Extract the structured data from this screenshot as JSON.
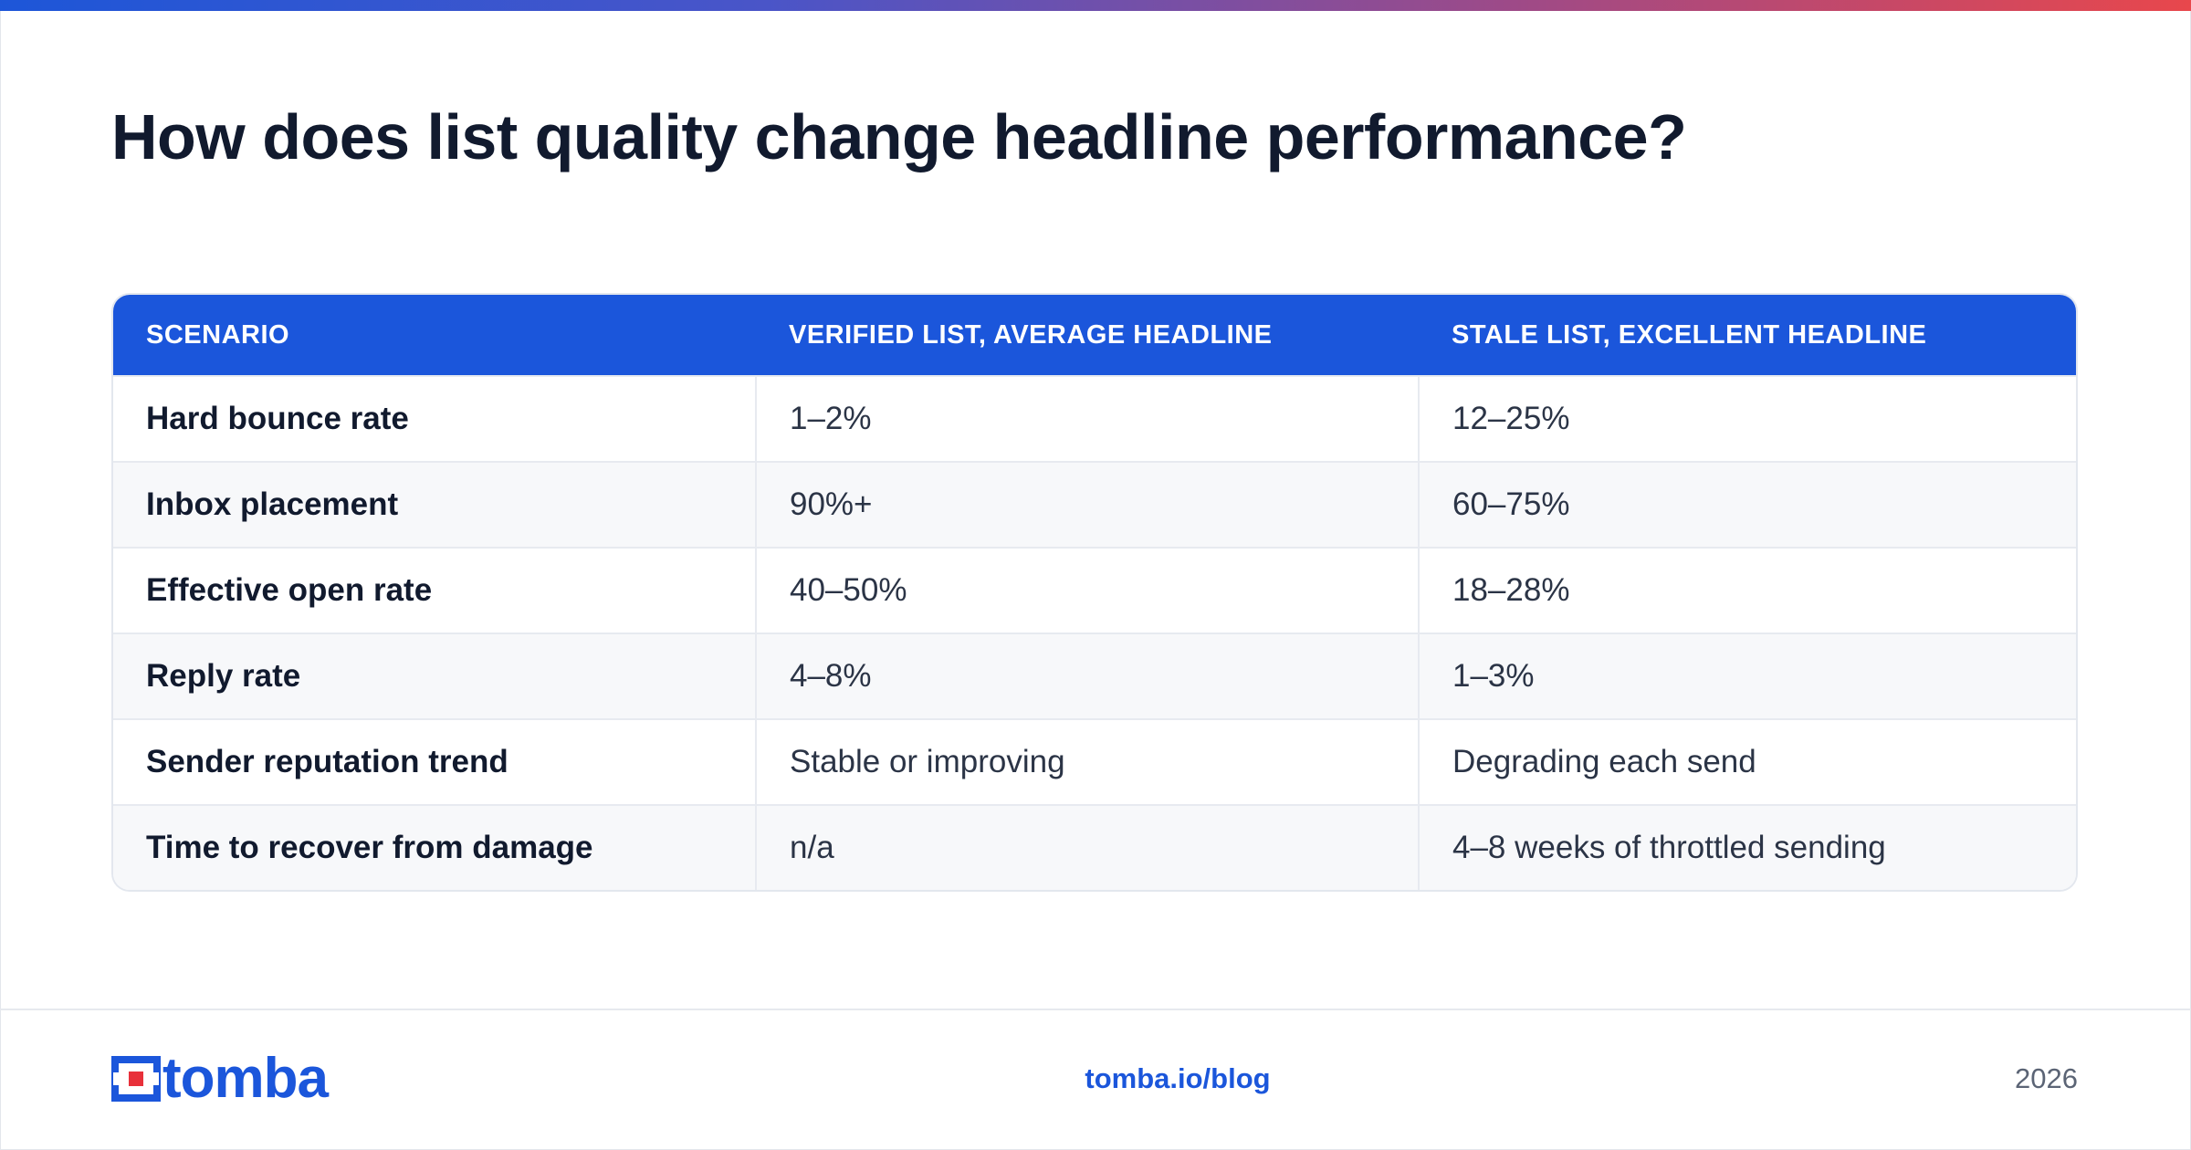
{
  "title": "How does list quality change headline performance?",
  "table": {
    "headers": [
      "SCENARIO",
      "VERIFIED LIST, AVERAGE HEADLINE",
      "STALE LIST, EXCELLENT HEADLINE"
    ],
    "rows": [
      [
        "Hard bounce rate",
        "1–2%",
        "12–25%"
      ],
      [
        "Inbox placement",
        "90%+",
        "60–75%"
      ],
      [
        "Effective open rate",
        "40–50%",
        "18–28%"
      ],
      [
        "Reply rate",
        "4–8%",
        "1–3%"
      ],
      [
        "Sender reputation trend",
        "Stable or improving",
        "Degrading each send"
      ],
      [
        "Time to recover from damage",
        "n/a",
        "4–8 weeks of throttled sending"
      ]
    ]
  },
  "footer": {
    "brand": "tomba",
    "link": "tomba.io/blog",
    "year": "2026"
  },
  "colors": {
    "accent": "#1b56db",
    "logo_square": "#e8303a",
    "title": "#111a2e"
  }
}
